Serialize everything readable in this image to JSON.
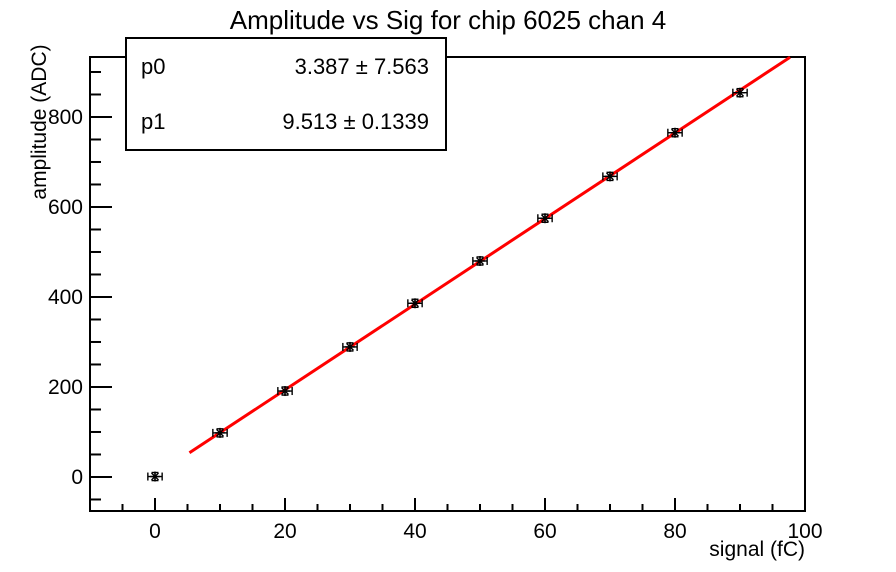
{
  "title": "Amplitude vs Sig for chip 6025 chan 4",
  "stats_box": {
    "rows": [
      {
        "name": "p0",
        "value": "3.387 ± 7.563"
      },
      {
        "name": "p1",
        "value": "9.513 ± 0.1339"
      }
    ]
  },
  "colors": {
    "background": "#ffffff",
    "axis": "#000000",
    "marker": "#000000",
    "fit_line": "#ff0000",
    "text": "#000000"
  },
  "chart_data": {
    "type": "scatter",
    "title": "Amplitude vs Sig for chip 6025 chan 4",
    "xlabel": "signal (fC)",
    "ylabel": "amplitude (ADC)",
    "xlim": [
      -10,
      100
    ],
    "ylim": [
      -75.6,
      933.3
    ],
    "x_major_ticks": [
      0,
      20,
      40,
      60,
      80,
      100
    ],
    "x_minor_step": 5,
    "y_major_ticks": [
      0,
      200,
      400,
      600,
      800
    ],
    "y_minor_step": 50,
    "grid": false,
    "legend": null,
    "marker": "asterisk-star-with-error-bars",
    "points": {
      "x": [
        0,
        10,
        20,
        30,
        40,
        50,
        60,
        70,
        80,
        90
      ],
      "y": [
        1,
        98,
        191,
        289,
        386,
        480,
        575,
        668,
        765,
        854
      ],
      "x_err": 1.1,
      "y_err": 9
    },
    "fit_line": {
      "p0": 3.387,
      "p0_err": 7.563,
      "p1": 9.513,
      "p1_err": 0.1339,
      "x_range": [
        5.3,
        97.7
      ],
      "color": "#ff0000"
    }
  }
}
